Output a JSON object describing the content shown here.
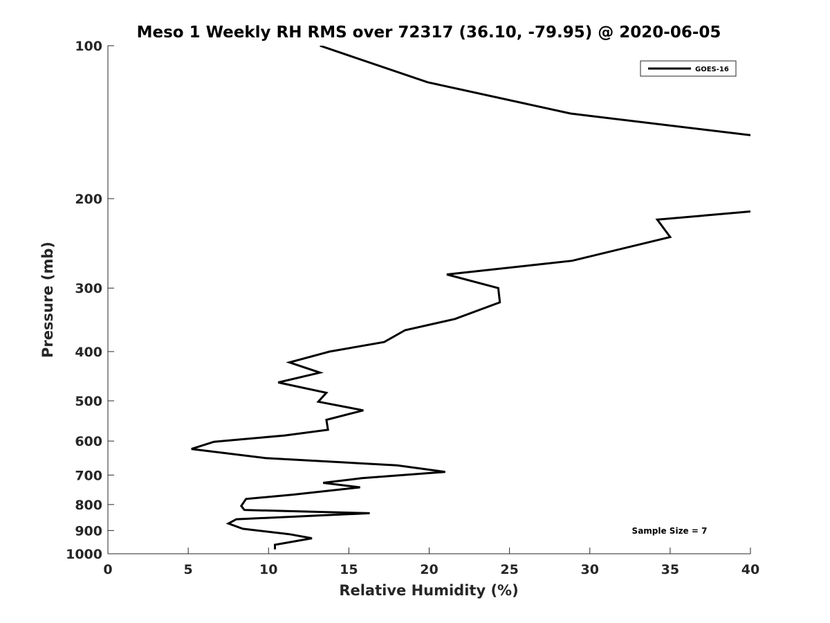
{
  "chart_data": {
    "type": "line",
    "title": "Meso 1 Weekly RH RMS over 72317 (36.10, -79.95) @ 2020-06-05",
    "xlabel": "Relative Humidity (%)",
    "ylabel": "Pressure (mb)",
    "xlim": [
      0,
      40
    ],
    "ylim": [
      100,
      1000
    ],
    "y_scale": "log",
    "y_reversed": true,
    "grid": false,
    "legend_position": "top-right",
    "x_ticks": [
      0,
      5,
      10,
      15,
      20,
      25,
      30,
      35,
      40
    ],
    "y_ticks": [
      100,
      200,
      300,
      400,
      500,
      600,
      700,
      800,
      900,
      1000
    ],
    "annotation": "Sample Size = 7",
    "series": [
      {
        "name": "GOES-16",
        "color": "#000000",
        "points": [
          {
            "x": 13.2,
            "y": 100
          },
          {
            "x": 19.9,
            "y": 118
          },
          {
            "x": 28.8,
            "y": 136
          },
          {
            "x": 40.0,
            "y": 150
          },
          {
            "x": null,
            "y": null
          },
          {
            "x": 40.0,
            "y": 212
          },
          {
            "x": 34.2,
            "y": 220
          },
          {
            "x": 35.0,
            "y": 238
          },
          {
            "x": 28.9,
            "y": 265
          },
          {
            "x": 21.1,
            "y": 282
          },
          {
            "x": 24.3,
            "y": 300
          },
          {
            "x": 24.4,
            "y": 320
          },
          {
            "x": 21.6,
            "y": 345
          },
          {
            "x": 18.5,
            "y": 363
          },
          {
            "x": 17.2,
            "y": 383
          },
          {
            "x": 13.8,
            "y": 400
          },
          {
            "x": 11.3,
            "y": 420
          },
          {
            "x": 13.2,
            "y": 440
          },
          {
            "x": 10.6,
            "y": 460
          },
          {
            "x": 13.6,
            "y": 482
          },
          {
            "x": 13.1,
            "y": 502
          },
          {
            "x": 15.9,
            "y": 522
          },
          {
            "x": 13.6,
            "y": 545
          },
          {
            "x": 13.7,
            "y": 570
          },
          {
            "x": 11.0,
            "y": 585
          },
          {
            "x": 6.6,
            "y": 602
          },
          {
            "x": 5.2,
            "y": 622
          },
          {
            "x": 9.8,
            "y": 648
          },
          {
            "x": 18.0,
            "y": 670
          },
          {
            "x": 21.0,
            "y": 690
          },
          {
            "x": 15.8,
            "y": 710
          },
          {
            "x": 13.4,
            "y": 725
          },
          {
            "x": 15.7,
            "y": 740
          },
          {
            "x": 11.5,
            "y": 765
          },
          {
            "x": 8.6,
            "y": 780
          },
          {
            "x": 8.3,
            "y": 805
          },
          {
            "x": 8.5,
            "y": 820
          },
          {
            "x": 16.3,
            "y": 832
          },
          {
            "x": 8.0,
            "y": 855
          },
          {
            "x": 7.5,
            "y": 872
          },
          {
            "x": 8.4,
            "y": 893
          },
          {
            "x": 11.3,
            "y": 915
          },
          {
            "x": 12.7,
            "y": 932
          },
          {
            "x": 10.4,
            "y": 960
          },
          {
            "x": 10.4,
            "y": 980
          }
        ]
      }
    ]
  }
}
